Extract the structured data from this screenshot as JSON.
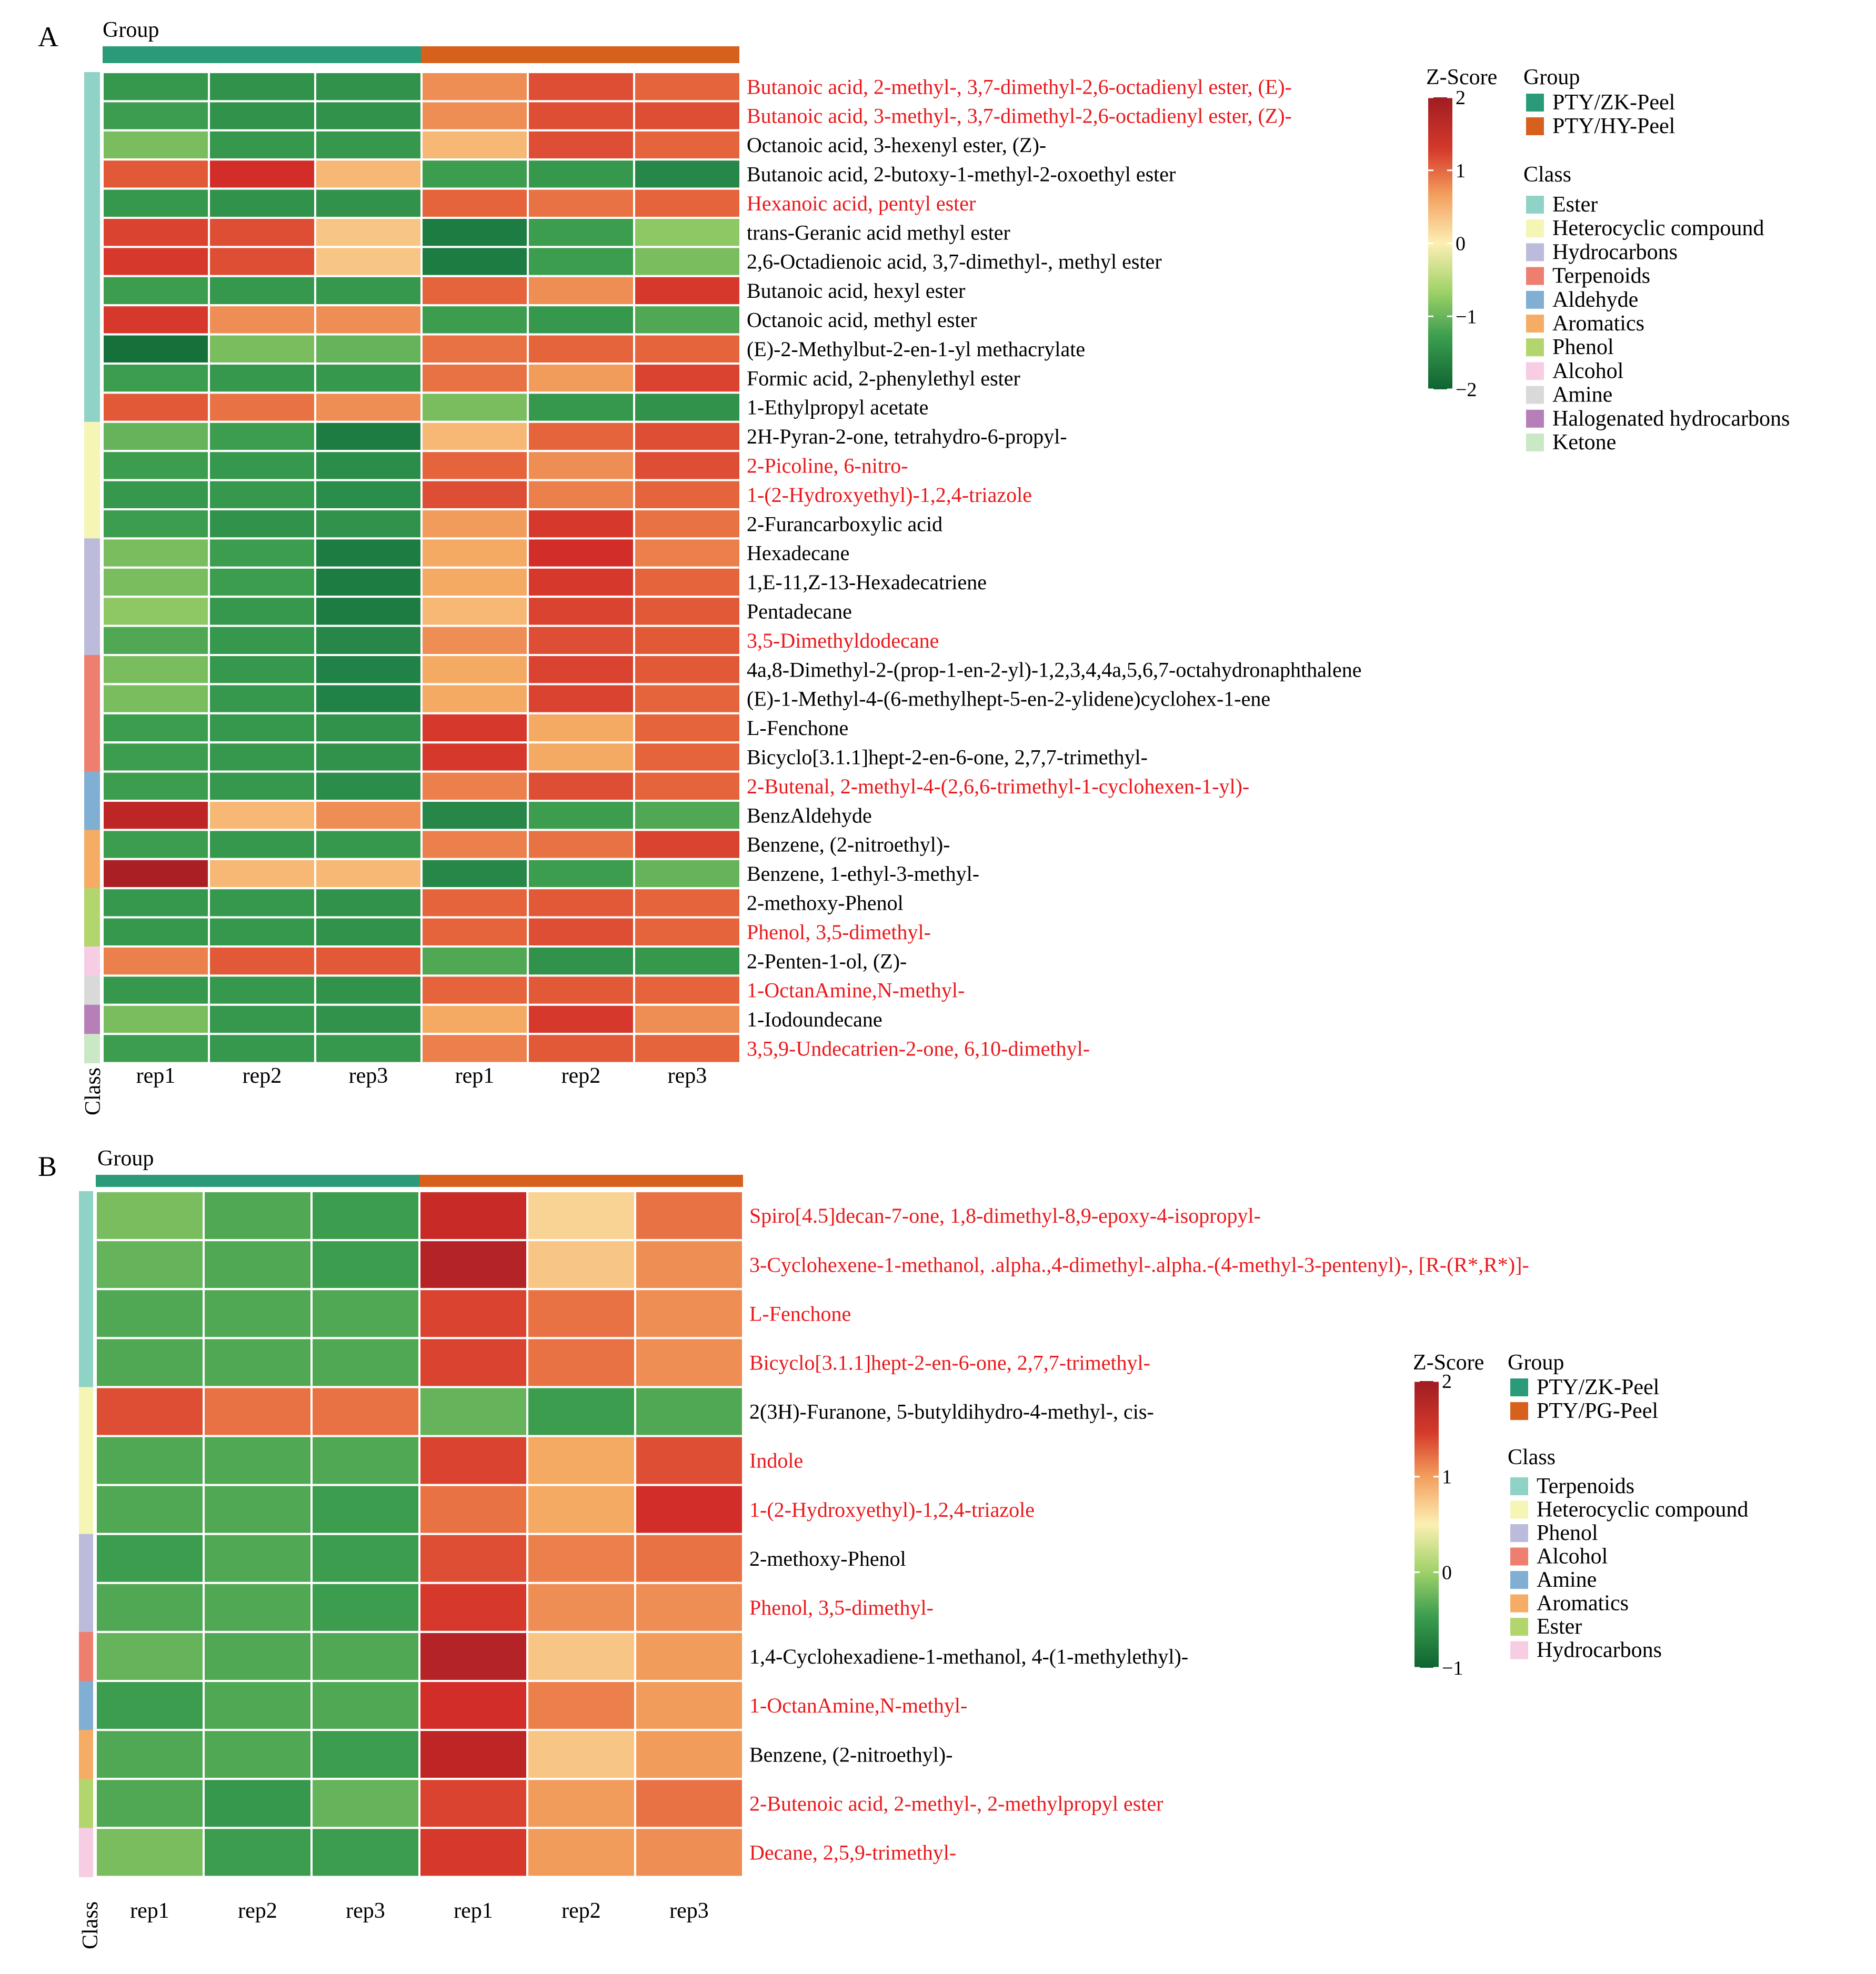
{
  "panels": [
    {
      "letter": "A",
      "group_title": "Group",
      "class_axis_label": "Class",
      "replicate_labels": [
        "rep1",
        "rep2",
        "rep3",
        "rep1",
        "rep2",
        "rep3"
      ],
      "legend": {
        "zscore_title": "Z-Score",
        "zscore_ticks": [
          "2",
          "1",
          "0",
          "−1",
          "−2"
        ],
        "group_title": "Group",
        "groups": [
          {
            "name": "PTY/ZK-Peel",
            "color": "#2b9a78"
          },
          {
            "name": "PTY/HY-Peel",
            "color": "#d7601c"
          }
        ],
        "class_title": "Class",
        "classes": [
          {
            "name": "Ester",
            "color": "#8fd2c6"
          },
          {
            "name": "Heterocyclic compound",
            "color": "#f5f5b5"
          },
          {
            "name": "Hydrocarbons",
            "color": "#bcbbdc"
          },
          {
            "name": "Terpenoids",
            "color": "#ee7f6e"
          },
          {
            "name": "Aldehyde",
            "color": "#81aed3"
          },
          {
            "name": "Aromatics",
            "color": "#f5ac64"
          },
          {
            "name": "Phenol",
            "color": "#b2d66d"
          },
          {
            "name": "Alcohol",
            "color": "#f6cde2"
          },
          {
            "name": "Amine",
            "color": "#d9d9d9"
          },
          {
            "name": "Halogenated hydrocarbons",
            "color": "#b67fb8"
          },
          {
            "name": "Ketone",
            "color": "#cbe8c6"
          }
        ]
      }
    },
    {
      "letter": "B",
      "group_title": "Group",
      "class_axis_label": "Class",
      "replicate_labels": [
        "rep1",
        "rep2",
        "rep3",
        "rep1",
        "rep2",
        "rep3"
      ],
      "legend": {
        "zscore_title": "Z-Score",
        "zscore_ticks": [
          "2",
          "1",
          "0",
          "−1"
        ],
        "group_title": "Group",
        "groups": [
          {
            "name": "PTY/ZK-Peel",
            "color": "#2b9a78"
          },
          {
            "name": "PTY/PG-Peel",
            "color": "#d7601c"
          }
        ],
        "class_title": "Class",
        "classes": [
          {
            "name": "Terpenoids",
            "color": "#8fd2c6"
          },
          {
            "name": "Heterocyclic compound",
            "color": "#f5f5b5"
          },
          {
            "name": "Phenol",
            "color": "#bcbbdc"
          },
          {
            "name": "Alcohol",
            "color": "#ee7f6e"
          },
          {
            "name": "Amine",
            "color": "#81aed3"
          },
          {
            "name": "Aromatics",
            "color": "#f5ac64"
          },
          {
            "name": "Ester",
            "color": "#b2d66d"
          },
          {
            "name": "Hydrocarbons",
            "color": "#f6cde2"
          }
        ]
      }
    }
  ],
  "chart_data": [
    {
      "type": "heatmap",
      "panel": "A",
      "title": "",
      "columns": [
        "PTY/ZK-Peel rep1",
        "PTY/ZK-Peel rep2",
        "PTY/ZK-Peel rep3",
        "PTY/HY-Peel rep1",
        "PTY/HY-Peel rep2",
        "PTY/HY-Peel rep3"
      ],
      "color_scale": {
        "label": "Z-Score",
        "min": -2,
        "max": 2
      },
      "rows": [
        {
          "name": "Butanoic acid, 2-methyl-, 3,7-dimethyl-2,6-octadienyl ester, (E)-",
          "class": "Ester",
          "highlight": true,
          "values": [
            -1.1,
            -1.2,
            -1.2,
            0.7,
            1.2,
            1.0
          ]
        },
        {
          "name": "Butanoic acid, 3-methyl-, 3,7-dimethyl-2,6-octadienyl ester, (Z)-",
          "class": "Ester",
          "highlight": true,
          "values": [
            -1.0,
            -1.2,
            -1.2,
            0.7,
            1.2,
            1.2
          ]
        },
        {
          "name": "Octanoic acid, 3-hexenyl ester, (Z)-",
          "class": "Ester",
          "highlight": false,
          "values": [
            -0.7,
            -1.1,
            -1.1,
            0.4,
            1.2,
            1.0
          ]
        },
        {
          "name": "Butanoic acid, 2-butoxy-1-methyl-2-oxoethyl ester",
          "class": "Ester",
          "highlight": false,
          "values": [
            1.1,
            1.5,
            0.4,
            -1.0,
            -1.1,
            -1.4
          ]
        },
        {
          "name": "Hexanoic acid, pentyl ester",
          "class": "Ester",
          "highlight": true,
          "values": [
            -1.1,
            -1.2,
            -1.2,
            1.0,
            0.9,
            1.0
          ]
        },
        {
          "name": "trans-Geranic acid methyl ester",
          "class": "Ester",
          "highlight": false,
          "values": [
            1.3,
            1.2,
            0.3,
            -1.6,
            -1.0,
            -0.6
          ]
        },
        {
          "name": "2,6-Octadienoic acid, 3,7-dimethyl-, methyl ester",
          "class": "Ester",
          "highlight": false,
          "values": [
            1.4,
            1.2,
            0.3,
            -1.6,
            -1.0,
            -0.7
          ]
        },
        {
          "name": "Butanoic acid, hexyl ester",
          "class": "Ester",
          "highlight": false,
          "values": [
            -1.0,
            -1.1,
            -1.1,
            1.0,
            0.7,
            1.4
          ]
        },
        {
          "name": "Octanoic acid, methyl ester",
          "class": "Ester",
          "highlight": false,
          "values": [
            1.4,
            0.7,
            0.7,
            -1.0,
            -1.1,
            -0.9
          ]
        },
        {
          "name": "(E)-2-Methylbut-2-en-1-yl methacrylate",
          "class": "Ester",
          "highlight": false,
          "values": [
            -1.8,
            -0.7,
            -0.8,
            0.9,
            1.0,
            1.0
          ]
        },
        {
          "name": "Formic acid, 2-phenylethyl ester",
          "class": "Ester",
          "highlight": false,
          "values": [
            -1.0,
            -1.1,
            -1.1,
            0.9,
            0.6,
            1.3
          ]
        },
        {
          "name": "1-Ethylpropyl acetate",
          "class": "Ester",
          "highlight": false,
          "values": [
            1.1,
            0.9,
            0.7,
            -0.7,
            -1.1,
            -1.2
          ]
        },
        {
          "name": "2H-Pyran-2-one, tetrahydro-6-propyl-",
          "class": "Heterocyclic compound",
          "highlight": false,
          "values": [
            -0.8,
            -1.0,
            -1.6,
            0.4,
            1.0,
            1.2
          ]
        },
        {
          "name": "2-Picoline, 6-nitro-",
          "class": "Heterocyclic compound",
          "highlight": true,
          "values": [
            -1.0,
            -1.1,
            -1.3,
            1.0,
            0.7,
            1.2
          ]
        },
        {
          "name": "1-(2-Hydroxyethyl)-1,2,4-triazole",
          "class": "Heterocyclic compound",
          "highlight": true,
          "values": [
            -1.1,
            -1.1,
            -1.3,
            1.2,
            0.8,
            1.0
          ]
        },
        {
          "name": "2-Furancarboxylic acid",
          "class": "Heterocyclic compound",
          "highlight": false,
          "values": [
            -1.0,
            -1.2,
            -1.2,
            0.6,
            1.4,
            0.9
          ]
        },
        {
          "name": "Hexadecane",
          "class": "Hydrocarbons",
          "highlight": false,
          "values": [
            -0.7,
            -1.0,
            -1.6,
            0.5,
            1.5,
            0.8
          ]
        },
        {
          "name": "1,E-11,Z-13-Hexadecatriene",
          "class": "Hydrocarbons",
          "highlight": false,
          "values": [
            -0.7,
            -1.0,
            -1.6,
            0.5,
            1.4,
            1.0
          ]
        },
        {
          "name": "Pentadecane",
          "class": "Hydrocarbons",
          "highlight": false,
          "values": [
            -0.6,
            -1.1,
            -1.6,
            0.4,
            1.3,
            1.1
          ]
        },
        {
          "name": "3,5-Dimethyldodecane",
          "class": "Hydrocarbons",
          "highlight": true,
          "values": [
            -0.9,
            -1.1,
            -1.4,
            0.7,
            1.2,
            1.1
          ]
        },
        {
          "name": "4a,8-Dimethyl-2-(prop-1-en-2-yl)-1,2,3,4,4a,5,6,7-octahydronaphthalene",
          "class": "Terpenoids",
          "highlight": false,
          "values": [
            -0.7,
            -1.1,
            -1.5,
            0.5,
            1.3,
            1.1
          ]
        },
        {
          "name": "(E)-1-Methyl-4-(6-methylhept-5-en-2-ylidene)cyclohex-1-ene",
          "class": "Terpenoids",
          "highlight": false,
          "values": [
            -0.7,
            -1.1,
            -1.5,
            0.5,
            1.3,
            1.0
          ]
        },
        {
          "name": "L-Fenchone",
          "class": "Terpenoids",
          "highlight": false,
          "values": [
            -1.0,
            -1.1,
            -1.2,
            1.4,
            0.5,
            1.0
          ]
        },
        {
          "name": "Bicyclo[3.1.1]hept-2-en-6-one, 2,7,7-trimethyl-",
          "class": "Terpenoids",
          "highlight": false,
          "values": [
            -1.0,
            -1.1,
            -1.2,
            1.4,
            0.5,
            1.0
          ]
        },
        {
          "name": "2-Butenal, 2-methyl-4-(2,6,6-trimethyl-1-cyclohexen-1-yl)-",
          "class": "Aldehyde",
          "highlight": true,
          "values": [
            -1.0,
            -1.1,
            -1.3,
            0.8,
            1.2,
            1.0
          ]
        },
        {
          "name": "BenzAldehyde",
          "class": "Aldehyde",
          "highlight": false,
          "values": [
            1.7,
            0.4,
            0.7,
            -1.4,
            -1.0,
            -0.9
          ]
        },
        {
          "name": "Benzene, (2-nitroethyl)-",
          "class": "Aromatics",
          "highlight": false,
          "values": [
            -1.0,
            -1.1,
            -1.1,
            0.8,
            0.9,
            1.3
          ]
        },
        {
          "name": "Benzene, 1-ethyl-3-methyl-",
          "class": "Aromatics",
          "highlight": false,
          "values": [
            1.9,
            0.4,
            0.4,
            -1.4,
            -1.0,
            -0.8
          ]
        },
        {
          "name": "2-methoxy-Phenol",
          "class": "Phenol",
          "highlight": false,
          "values": [
            -1.1,
            -1.1,
            -1.2,
            1.0,
            1.1,
            1.0
          ]
        },
        {
          "name": "Phenol, 3,5-dimethyl-",
          "class": "Phenol",
          "highlight": true,
          "values": [
            -1.1,
            -1.1,
            -1.2,
            1.0,
            1.2,
            1.0
          ]
        },
        {
          "name": "2-Penten-1-ol, (Z)-",
          "class": "Alcohol",
          "highlight": false,
          "values": [
            0.8,
            1.1,
            1.1,
            -0.9,
            -1.2,
            -1.1
          ]
        },
        {
          "name": "1-OctanAmine,N-methyl-",
          "class": "Amine",
          "highlight": true,
          "values": [
            -1.1,
            -1.1,
            -1.2,
            1.0,
            1.1,
            1.0
          ]
        },
        {
          "name": "1-Iodoundecane",
          "class": "Halogenated hydrocarbons",
          "highlight": false,
          "values": [
            -0.7,
            -1.1,
            -1.2,
            0.5,
            1.4,
            0.7
          ]
        },
        {
          "name": "3,5,9-Undecatrien-2-one, 6,10-dimethyl-",
          "class": "Ketone",
          "highlight": true,
          "values": [
            -1.0,
            -1.1,
            -1.1,
            0.8,
            1.1,
            1.0
          ]
        }
      ]
    },
    {
      "type": "heatmap",
      "panel": "B",
      "title": "",
      "columns": [
        "PTY/ZK-Peel rep1",
        "PTY/ZK-Peel rep2",
        "PTY/ZK-Peel rep3",
        "PTY/PG-Peel rep1",
        "PTY/PG-Peel rep2",
        "PTY/PG-Peel rep3"
      ],
      "color_scale": {
        "label": "Z-Score",
        "min": -1,
        "max": 2
      },
      "rows": [
        {
          "name": "Spiro[4.5]decan-7-one, 1,8-dimethyl-8,9-epoxy-4-isopropyl-",
          "class": "Terpenoids",
          "highlight": true,
          "values": [
            -0.7,
            -0.9,
            -1.0,
            1.6,
            0.2,
            0.9
          ]
        },
        {
          "name": "3-Cyclohexene-1-methanol, .alpha.,4-dimethyl-.alpha.-(4-methyl-3-pentenyl)-, [R-(R*,R*)]-",
          "class": "Terpenoids",
          "highlight": true,
          "values": [
            -0.8,
            -0.9,
            -1.0,
            1.8,
            0.3,
            0.7
          ]
        },
        {
          "name": "L-Fenchone",
          "class": "Terpenoids",
          "highlight": true,
          "values": [
            -0.9,
            -0.9,
            -0.9,
            1.3,
            0.9,
            0.7
          ]
        },
        {
          "name": "Bicyclo[3.1.1]hept-2-en-6-one, 2,7,7-trimethyl-",
          "class": "Terpenoids",
          "highlight": true,
          "values": [
            -0.9,
            -0.9,
            -0.9,
            1.3,
            0.9,
            0.7
          ]
        },
        {
          "name": "2(3H)-Furanone, 5-butyldihydro-4-methyl-, cis-",
          "class": "Heterocyclic compound",
          "highlight": false,
          "values": [
            1.2,
            0.9,
            0.9,
            -0.8,
            -1.0,
            -0.9
          ]
        },
        {
          "name": "Indole",
          "class": "Heterocyclic compound",
          "highlight": true,
          "values": [
            -0.9,
            -0.9,
            -0.9,
            1.3,
            0.5,
            1.2
          ]
        },
        {
          "name": "1-(2-Hydroxyethyl)-1,2,4-triazole",
          "class": "Heterocyclic compound",
          "highlight": true,
          "values": [
            -0.9,
            -0.9,
            -1.0,
            0.9,
            0.5,
            1.5
          ]
        },
        {
          "name": "2-methoxy-Phenol",
          "class": "Phenol",
          "highlight": false,
          "values": [
            -1.0,
            -0.9,
            -1.0,
            1.2,
            0.8,
            0.9
          ]
        },
        {
          "name": "Phenol, 3,5-dimethyl-",
          "class": "Phenol",
          "highlight": true,
          "values": [
            -0.9,
            -0.9,
            -1.0,
            1.4,
            0.7,
            0.7
          ]
        },
        {
          "name": "1,4-Cyclohexadiene-1-methanol, 4-(1-methylethyl)-",
          "class": "Alcohol",
          "highlight": false,
          "values": [
            -0.8,
            -0.9,
            -0.9,
            1.8,
            0.3,
            0.6
          ]
        },
        {
          "name": "1-OctanAmine,N-methyl-",
          "class": "Amine",
          "highlight": true,
          "values": [
            -1.0,
            -0.9,
            -0.9,
            1.5,
            0.8,
            0.6
          ]
        },
        {
          "name": "Benzene, (2-nitroethyl)-",
          "class": "Aromatics",
          "highlight": false,
          "values": [
            -0.9,
            -0.9,
            -1.0,
            1.7,
            0.3,
            0.6
          ]
        },
        {
          "name": "2-Butenoic acid, 2-methyl-, 2-methylpropyl ester",
          "class": "Ester",
          "highlight": true,
          "values": [
            -0.9,
            -1.1,
            -0.8,
            1.3,
            0.6,
            0.9
          ]
        },
        {
          "name": "Decane, 2,5,9-trimethyl-",
          "class": "Hydrocarbons",
          "highlight": true,
          "values": [
            -0.7,
            -1.0,
            -1.0,
            1.4,
            0.6,
            0.7
          ]
        }
      ]
    }
  ]
}
